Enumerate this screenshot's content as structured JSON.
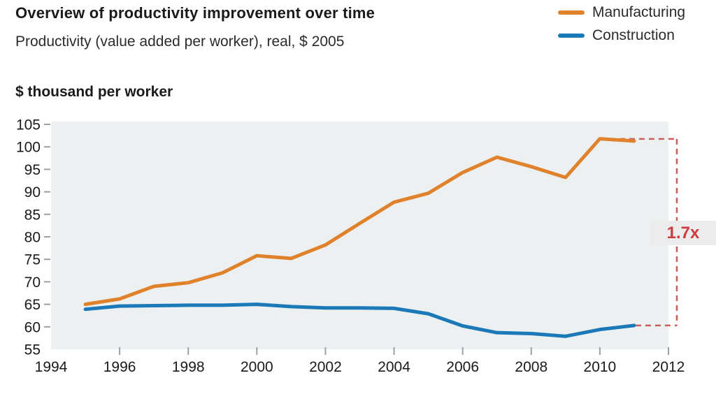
{
  "header": {
    "title": "Overview of productivity improvement over time",
    "subtitle": "Productivity (value added per worker), real, $ 2005"
  },
  "legend": [
    {
      "label": "Manufacturing",
      "color": "#e0812c"
    },
    {
      "label": "Construction",
      "color": "#1b79b8"
    }
  ],
  "chart_data": {
    "type": "line",
    "title": "Overview of productivity improvement over time",
    "subtitle": "Productivity (value added per worker), real, $ 2005",
    "axis_title": "$ thousand per worker",
    "x": [
      1995,
      1996,
      1997,
      1998,
      1999,
      2000,
      2001,
      2002,
      2003,
      2004,
      2005,
      2006,
      2007,
      2008,
      2009,
      2010,
      2011
    ],
    "series": [
      {
        "name": "Manufacturing",
        "color": "#e0812c",
        "values": [
          65.0,
          66.2,
          69.0,
          69.8,
          72.0,
          75.8,
          75.2,
          78.2,
          83.0,
          87.7,
          89.7,
          94.3,
          97.7,
          95.6,
          93.2,
          101.8,
          101.3
        ]
      },
      {
        "name": "Construction",
        "color": "#1b79b8",
        "values": [
          63.9,
          64.6,
          64.7,
          64.8,
          64.8,
          65.0,
          64.5,
          64.2,
          64.2,
          64.1,
          62.9,
          60.2,
          58.7,
          58.5,
          57.9,
          59.4,
          60.3
        ]
      }
    ],
    "x_ticks": [
      1994,
      1996,
      1998,
      2000,
      2002,
      2004,
      2006,
      2008,
      2010,
      2012
    ],
    "y_ticks": [
      105,
      100,
      95,
      90,
      85,
      80,
      75,
      70,
      65,
      60,
      55
    ],
    "xlim": [
      1994,
      2012
    ],
    "ylim": [
      55,
      105
    ],
    "grid": false,
    "legend_position": "top-right",
    "plot_bg": "#edf0f1",
    "tick_color": "#9aa0a5",
    "annotation": {
      "label": "1.7x",
      "text_color": "#ce3b3e",
      "dash_color": "#c75f5a"
    }
  }
}
